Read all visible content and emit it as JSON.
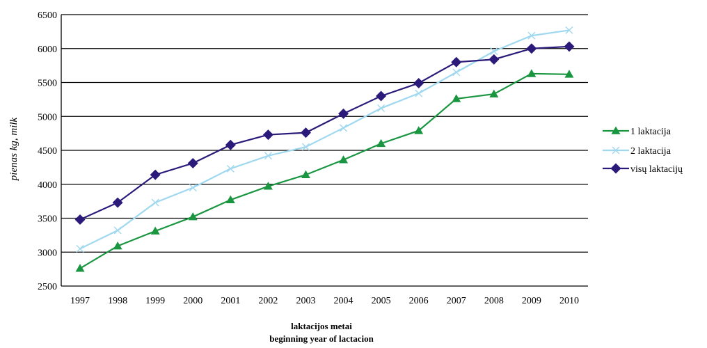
{
  "chart_data": {
    "type": "line",
    "title": "",
    "ylabel": "pienas kg, milk",
    "xlabel_line1": "laktacijos metai",
    "xlabel_line2": "beginning year of lactacion",
    "ylim": [
      2500,
      6500
    ],
    "yticks": [
      2500,
      3000,
      3500,
      4000,
      4500,
      5000,
      5500,
      6000,
      6500
    ],
    "categories": [
      "1997",
      "1998",
      "1999",
      "2000",
      "2001",
      "2002",
      "2003",
      "2004",
      "2005",
      "2006",
      "2007",
      "2008",
      "2009",
      "2010"
    ],
    "grid": true,
    "legend_position": "right",
    "series": [
      {
        "name": "1 laktacija",
        "color": "#1a9641",
        "marker": "triangle",
        "values": [
          2760,
          3090,
          3310,
          3520,
          3770,
          3970,
          4140,
          4360,
          4600,
          4790,
          5260,
          5330,
          5630,
          5620
        ]
      },
      {
        "name": "2 laktacija",
        "color": "#9fd8ef",
        "marker": "x",
        "values": [
          3050,
          3320,
          3730,
          3950,
          4230,
          4420,
          4550,
          4830,
          5120,
          5340,
          5650,
          5960,
          6190,
          6270
        ]
      },
      {
        "name": "visų laktacijų",
        "color": "#2b1a7a",
        "marker": "diamond",
        "values": [
          3480,
          3730,
          4140,
          4310,
          4580,
          4730,
          4760,
          5040,
          5300,
          5490,
          5800,
          5840,
          6000,
          6030
        ]
      }
    ]
  }
}
